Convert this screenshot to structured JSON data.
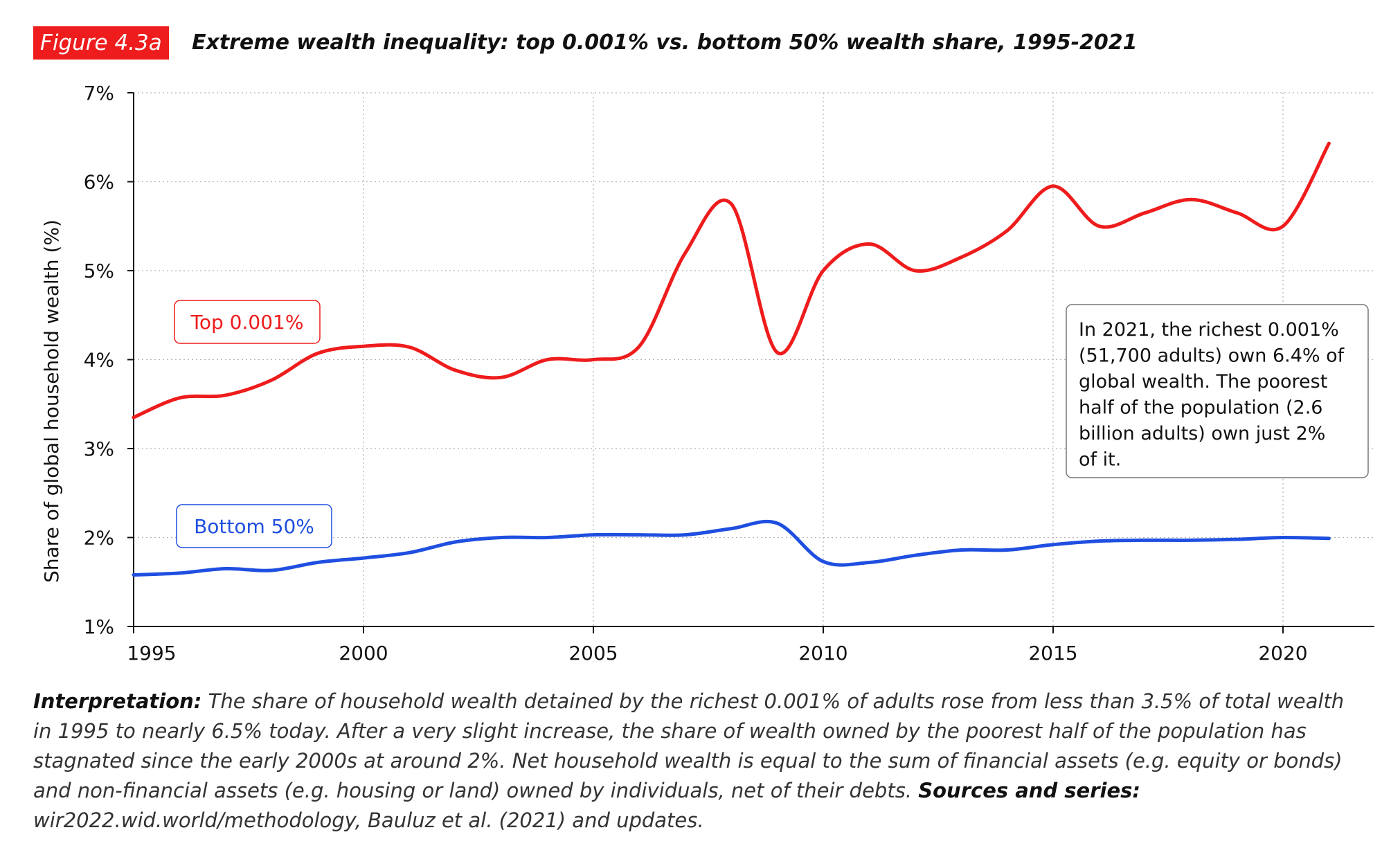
{
  "header": {
    "figure_label": "Figure 4.3a",
    "title": "Extreme wealth inequality: top 0.001% vs. bottom 50% wealth share, 1995-2021"
  },
  "chart_data": {
    "type": "line",
    "title": "Extreme wealth inequality: top 0.001% vs. bottom 50% wealth share, 1995-2021",
    "xlabel": "",
    "ylabel": "Share of global household wealth (%)",
    "xlim": [
      1995,
      2021.5
    ],
    "ylim": [
      1,
      7
    ],
    "x_ticks": [
      1995,
      2000,
      2005,
      2010,
      2015,
      2020
    ],
    "y_ticks": [
      1,
      2,
      3,
      4,
      5,
      6,
      7
    ],
    "y_tick_labels": [
      "1%",
      "2%",
      "3%",
      "4%",
      "5%",
      "6%",
      "7%"
    ],
    "grid": true,
    "series": [
      {
        "name": "Top 0.001%",
        "label": "Top 0.001%",
        "color": "#ee1c1c",
        "x": [
          1995,
          1996,
          1997,
          1998,
          1999,
          2000,
          2001,
          2002,
          2003,
          2004,
          2005,
          2006,
          2007,
          2008,
          2009,
          2010,
          2011,
          2012,
          2013,
          2014,
          2015,
          2016,
          2017,
          2018,
          2019,
          2020,
          2021
        ],
        "values": [
          3.35,
          3.57,
          3.6,
          3.77,
          4.07,
          4.15,
          4.14,
          3.88,
          3.8,
          4.0,
          4.0,
          4.15,
          5.2,
          5.75,
          4.08,
          5.0,
          5.3,
          5.0,
          5.15,
          5.45,
          5.95,
          5.5,
          5.65,
          5.8,
          5.65,
          5.5,
          6.43
        ]
      },
      {
        "name": "Bottom 50%",
        "label": "Bottom 50%",
        "color": "#1f4fe0",
        "x": [
          1995,
          1996,
          1997,
          1998,
          1999,
          2000,
          2001,
          2002,
          2003,
          2004,
          2005,
          2006,
          2007,
          2008,
          2009,
          2010,
          2011,
          2012,
          2013,
          2014,
          2015,
          2016,
          2017,
          2018,
          2019,
          2020,
          2021
        ],
        "values": [
          1.58,
          1.6,
          1.65,
          1.63,
          1.72,
          1.77,
          1.83,
          1.95,
          2.0,
          2.0,
          2.03,
          2.03,
          2.03,
          2.1,
          2.16,
          1.73,
          1.72,
          1.8,
          1.86,
          1.86,
          1.92,
          1.96,
          1.97,
          1.97,
          1.98,
          2.0,
          1.99
        ]
      }
    ],
    "annotation": "In 2021, the richest 0.001% (51,700 adults) own 6.4% of global wealth. The poorest half of the population (2.6 billion adults) own just 2% of it."
  },
  "note": {
    "interp_label": "Interpretation:",
    "interp_text": " The share of household wealth detained by the richest 0.001% of adults rose from less than 3.5% of total wealth in 1995 to nearly 6.5% today. After a very slight increase, the share of wealth owned by the poorest half of the population has stagnated since the early 2000s at around 2%. Net household wealth is equal to the sum of financial assets (e.g. equity or bonds) and non-financial assets (e.g. housing or land) owned by individuals, net of their debts. ",
    "sources_label": "Sources and series:",
    "sources_text": " wir2022.wid.world/methodology, Bauluz et al. (2021) and updates."
  }
}
